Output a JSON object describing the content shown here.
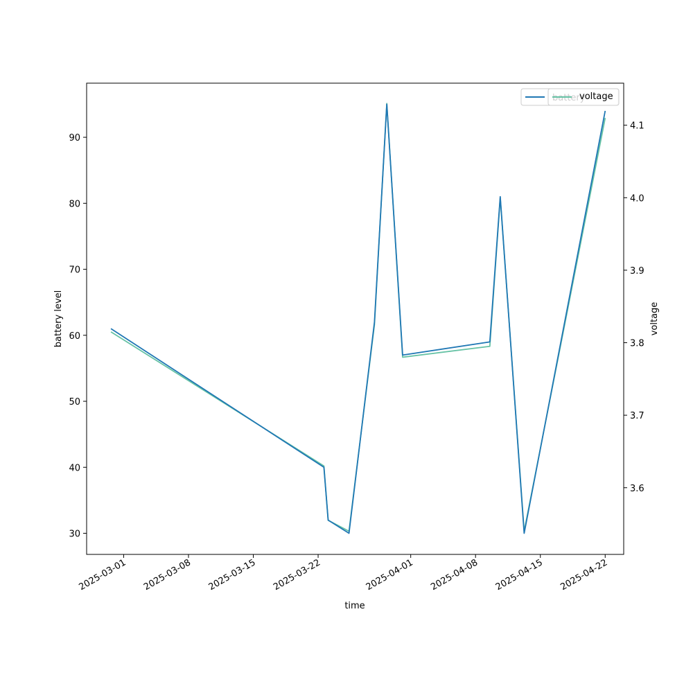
{
  "chart_data": {
    "type": "line",
    "xlabel": "time",
    "ylabel": "battery level",
    "y2label": "voltage",
    "x_ticks": [
      "2025-03-01",
      "2025-03-08",
      "2025-03-15",
      "2025-03-22",
      "2025-04-01",
      "2025-04-08",
      "2025-04-15",
      "2025-04-22"
    ],
    "xlim": [
      "2025-02-25",
      "2025-04-24"
    ],
    "ylim": [
      26.8,
      98.2
    ],
    "y_ticks": [
      30,
      40,
      50,
      60,
      70,
      80,
      90
    ],
    "y2lim": [
      3.508,
      4.158
    ],
    "y2_ticks": [
      3.6,
      3.7,
      3.8,
      3.9,
      4.0,
      4.1
    ],
    "legend_position": "top-right",
    "grid": false,
    "series": [
      {
        "name": "battery",
        "axis": "left",
        "color": "#1f77b4",
        "x": [
          "2025-02-27T15:00",
          "2025-03-22T15:00",
          "2025-03-23T02:00",
          "2025-03-25T08:00",
          "2025-03-28T02:00",
          "2025-03-29T10:00",
          "2025-03-31T03:00",
          "2025-04-09T13:00",
          "2025-04-10T16:00",
          "2025-04-13T06:00",
          "2025-04-22T00:00"
        ],
        "values": [
          61,
          40,
          32,
          30,
          62,
          95,
          57,
          59,
          81,
          30,
          94
        ]
      },
      {
        "name": "voltage",
        "axis": "right",
        "color": "#66c2a5",
        "x": [
          "2025-02-27T15:00",
          "2025-03-22T15:00",
          "2025-03-23T02:00",
          "2025-03-25T08:00",
          "2025-03-28T02:00",
          "2025-03-29T10:00",
          "2025-03-31T03:00",
          "2025-04-09T13:00",
          "2025-04-10T16:00",
          "2025-04-13T06:00",
          "2025-04-22T00:00"
        ],
        "values": [
          3.815,
          3.63,
          3.555,
          3.54,
          3.825,
          4.13,
          3.78,
          3.795,
          4.0,
          3.54,
          4.11
        ]
      }
    ]
  }
}
